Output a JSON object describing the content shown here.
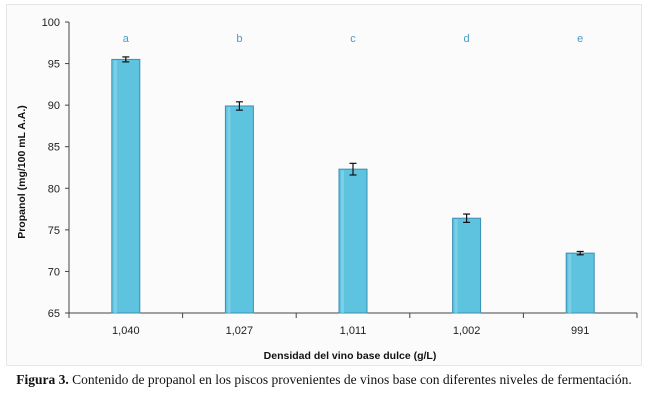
{
  "chart_data": {
    "type": "bar",
    "categories": [
      "1,040",
      "1,027",
      "1,011",
      "1,002",
      "991"
    ],
    "values": [
      95.5,
      89.9,
      82.3,
      76.4,
      72.2
    ],
    "errors": [
      0.3,
      0.5,
      0.7,
      0.5,
      0.2
    ],
    "significance": [
      "a",
      "b",
      "c",
      "d",
      "e"
    ],
    "ylim": [
      65,
      100
    ],
    "yticks": [
      "65",
      "70",
      "75",
      "80",
      "85",
      "90",
      "95",
      "100"
    ],
    "xlabel": "Densidad del vino base dulce (g/L)",
    "ylabel": "Propanol (mg/100 mL A.A.)",
    "grid": false,
    "bar_color": "#5ec3df",
    "bar_edge_color": "#3a8fb5"
  },
  "caption": {
    "label": "Figura 3.",
    "text": " Contenido de propanol en los piscos provenientes de vinos base con diferentes niveles de fermentación."
  }
}
